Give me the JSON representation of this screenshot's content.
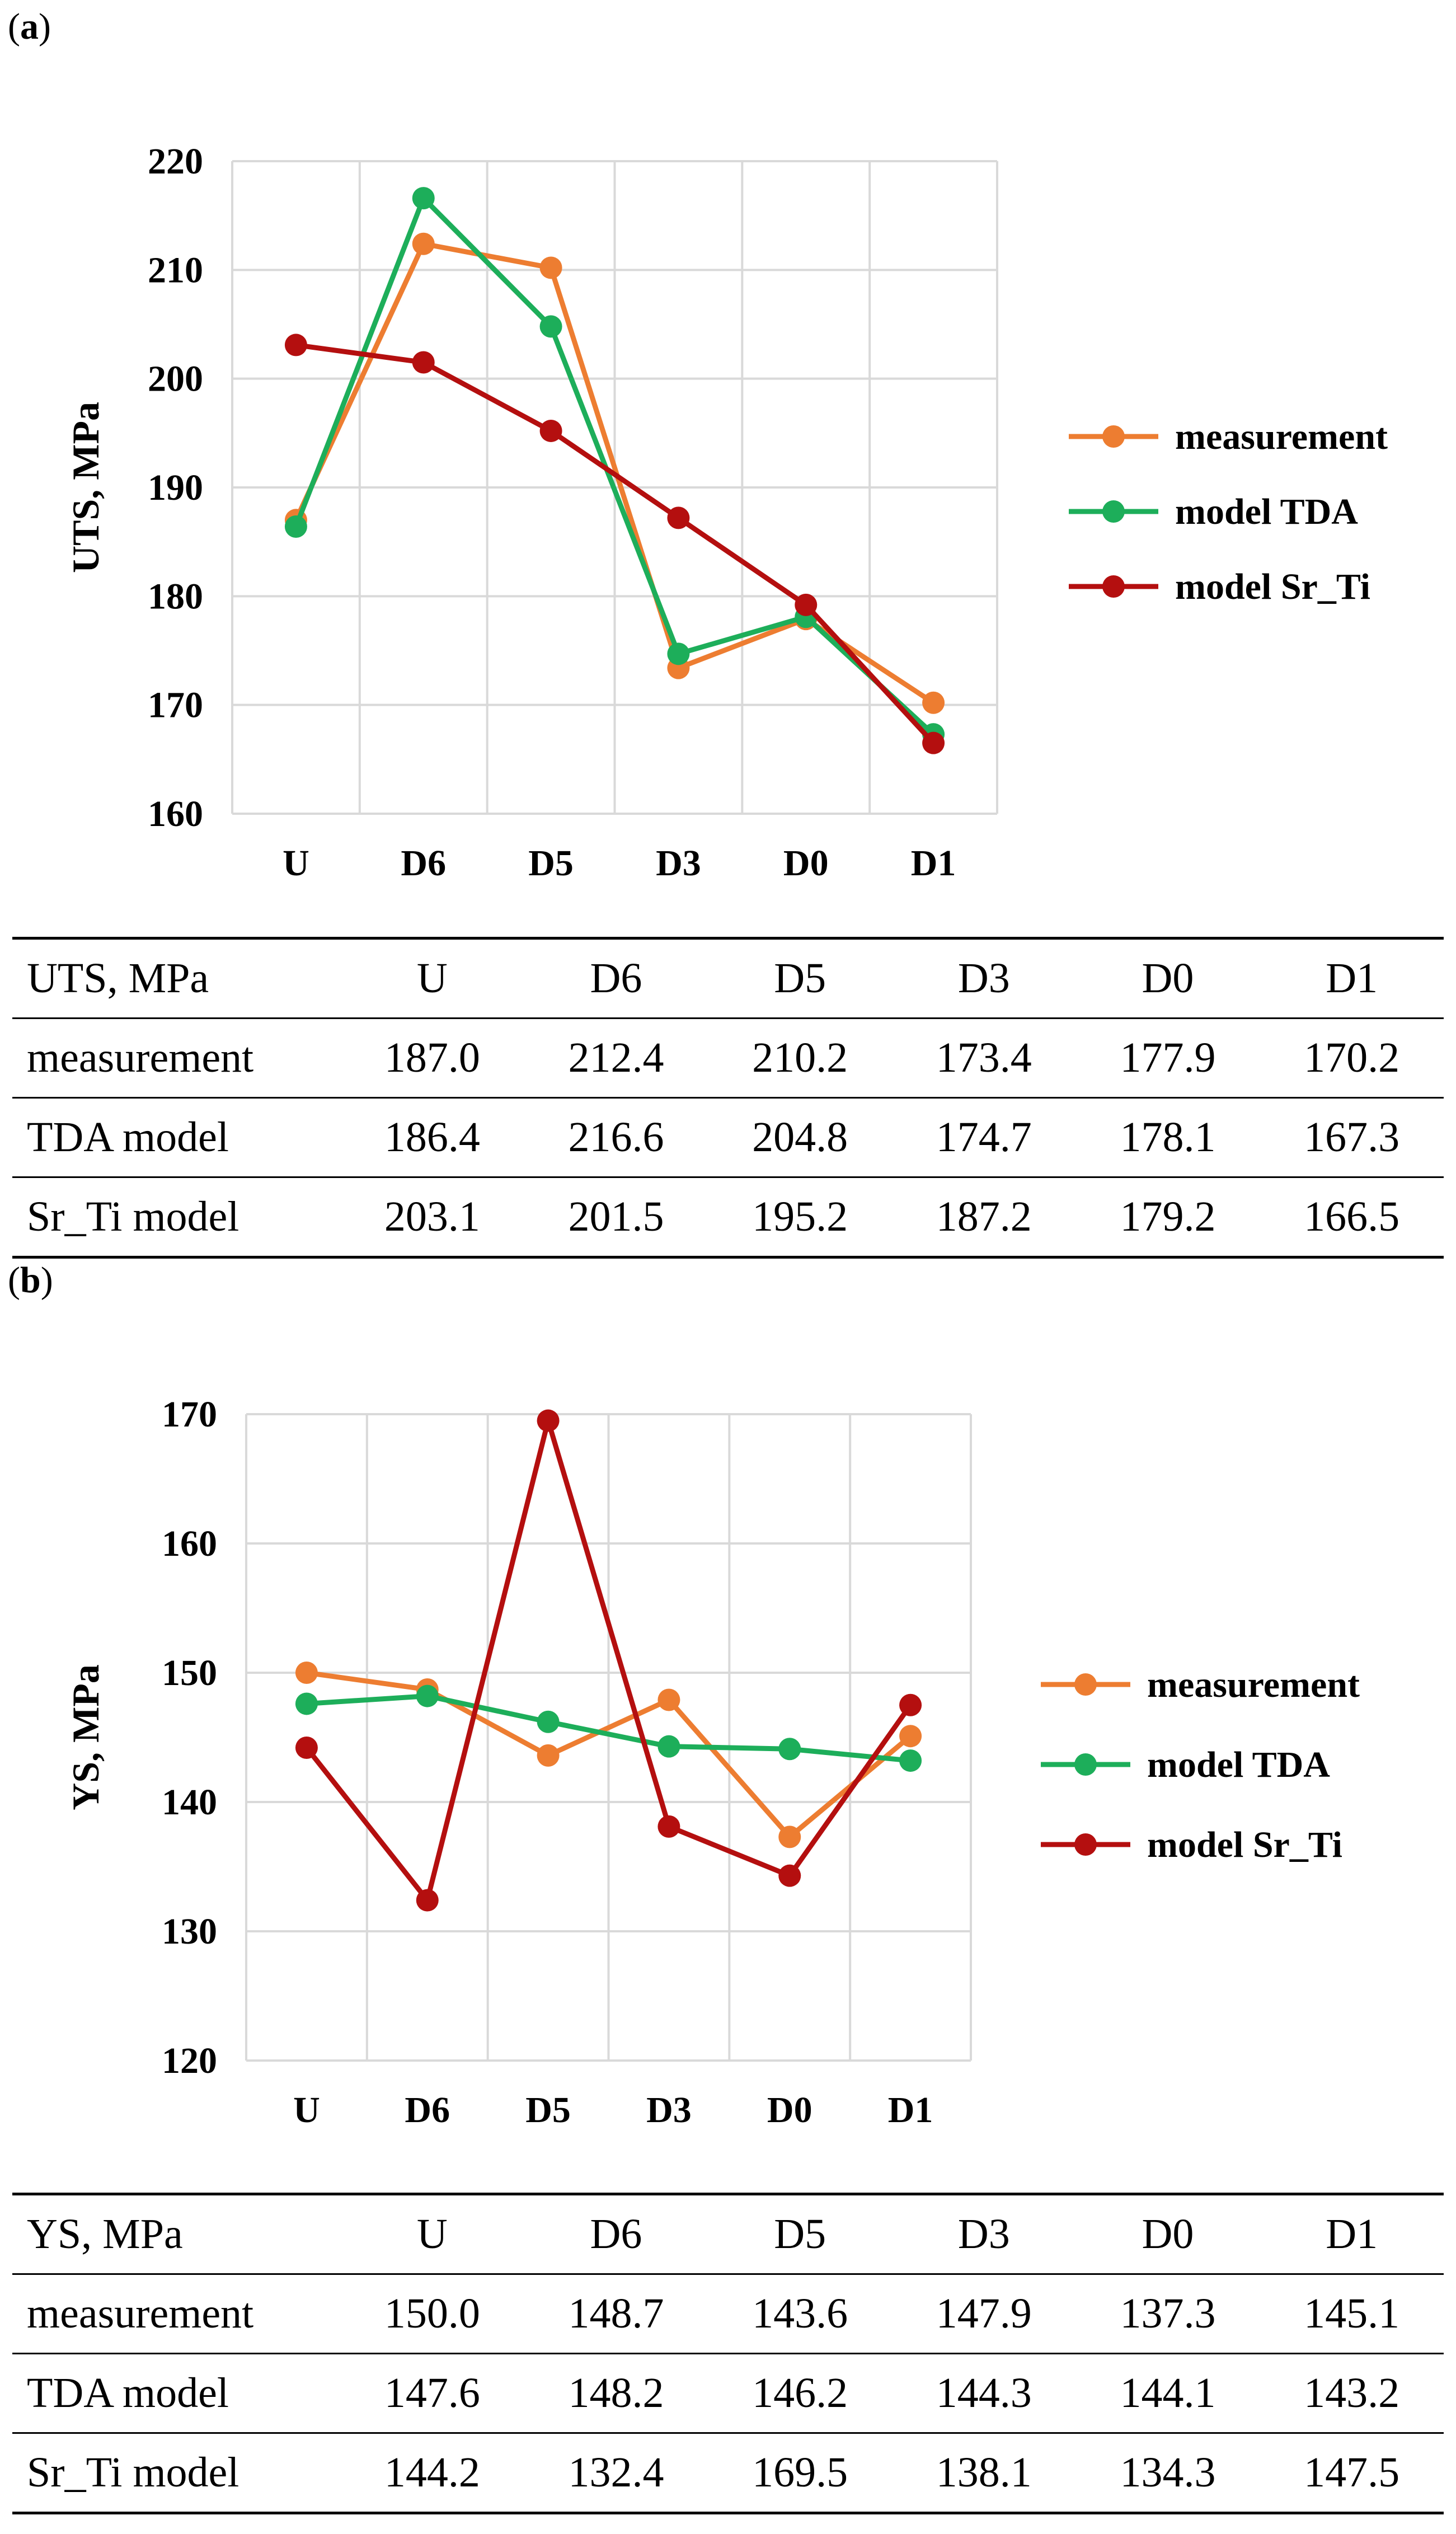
{
  "panel_a": {
    "label_open": "(",
    "label_letter": "a",
    "label_close": ")"
  },
  "panel_b": {
    "label_open": "(",
    "label_letter": "b",
    "label_close": ")"
  },
  "colors": {
    "measurement": "#ED7D31",
    "model_tda": "#1DAE5A",
    "model_sr_ti": "#B40F0F",
    "grid": "#D9D9D9"
  },
  "chart_data": [
    {
      "type": "line",
      "categories": [
        "U",
        "D6",
        "D5",
        "D3",
        "D0",
        "D1"
      ],
      "ylabel": "UTS, MPa",
      "xlabel": "",
      "ylim": [
        160,
        220
      ],
      "yticks": [
        160,
        170,
        180,
        190,
        200,
        210,
        220
      ],
      "grid": true,
      "legend_position": "right",
      "series": [
        {
          "name": "measurement",
          "color_key": "measurement",
          "values": [
            187.0,
            212.4,
            210.2,
            173.4,
            177.9,
            170.2
          ]
        },
        {
          "name": "model TDA",
          "color_key": "model_tda",
          "values": [
            186.4,
            216.6,
            204.8,
            174.7,
            178.1,
            167.3
          ]
        },
        {
          "name": "model Sr_Ti",
          "color_key": "model_sr_ti",
          "values": [
            203.1,
            201.5,
            195.2,
            187.2,
            179.2,
            166.5
          ]
        }
      ]
    },
    {
      "type": "line",
      "categories": [
        "U",
        "D6",
        "D5",
        "D3",
        "D0",
        "D1"
      ],
      "ylabel": "YS, MPa",
      "xlabel": "",
      "ylim": [
        120,
        170
      ],
      "yticks": [
        120,
        130,
        140,
        150,
        160,
        170
      ],
      "grid": true,
      "legend_position": "right",
      "series": [
        {
          "name": "measurement",
          "color_key": "measurement",
          "values": [
            150.0,
            148.7,
            143.6,
            147.9,
            137.3,
            145.1
          ]
        },
        {
          "name": "model TDA",
          "color_key": "model_tda",
          "values": [
            147.6,
            148.2,
            146.2,
            144.3,
            144.1,
            143.2
          ]
        },
        {
          "name": "model Sr_Ti",
          "color_key": "model_sr_ti",
          "values": [
            144.2,
            132.4,
            169.5,
            138.1,
            134.3,
            147.5
          ]
        }
      ]
    }
  ],
  "table_a": {
    "header": [
      "UTS, MPa",
      "U",
      "D6",
      "D5",
      "D3",
      "D0",
      "D1"
    ],
    "rows": [
      [
        "measurement",
        "187.0",
        "212.4",
        "210.2",
        "173.4",
        "177.9",
        "170.2"
      ],
      [
        "TDA model",
        "186.4",
        "216.6",
        "204.8",
        "174.7",
        "178.1",
        "167.3"
      ],
      [
        "Sr_Ti model",
        "203.1",
        "201.5",
        "195.2",
        "187.2",
        "179.2",
        "166.5"
      ]
    ]
  },
  "table_b": {
    "header": [
      "YS, MPa",
      "U",
      "D6",
      "D5",
      "D3",
      "D0",
      "D1"
    ],
    "rows": [
      [
        "measurement",
        "150.0",
        "148.7",
        "143.6",
        "147.9",
        "137.3",
        "145.1"
      ],
      [
        "TDA model",
        "147.6",
        "148.2",
        "146.2",
        "144.3",
        "144.1",
        "143.2"
      ],
      [
        "Sr_Ti model",
        "144.2",
        "132.4",
        "169.5",
        "138.1",
        "134.3",
        "147.5"
      ]
    ]
  }
}
